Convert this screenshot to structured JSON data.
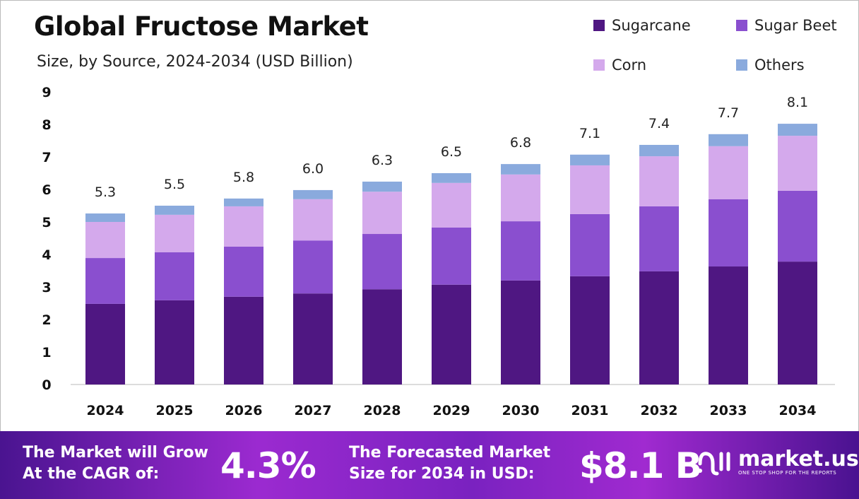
{
  "chart_data": {
    "type": "bar",
    "stacked": true,
    "title": "Global Fructose Market",
    "subtitle": "Size, by Source, 2024-2034 (USD Billion)",
    "categories": [
      "2024",
      "2025",
      "2026",
      "2027",
      "2028",
      "2029",
      "2030",
      "2031",
      "2032",
      "2033",
      "2034"
    ],
    "series": [
      {
        "name": "Sugarcane",
        "color": "#4f1782",
        "values": [
          2.48,
          2.59,
          2.7,
          2.8,
          2.93,
          3.07,
          3.2,
          3.33,
          3.48,
          3.63,
          3.78
        ]
      },
      {
        "name": "Sugar Beet",
        "color": "#8a4fcf",
        "values": [
          1.41,
          1.48,
          1.54,
          1.63,
          1.7,
          1.76,
          1.82,
          1.91,
          2.0,
          2.07,
          2.18
        ]
      },
      {
        "name": "Corn",
        "color": "#d4a9ec",
        "values": [
          1.11,
          1.15,
          1.24,
          1.27,
          1.3,
          1.37,
          1.44,
          1.5,
          1.54,
          1.63,
          1.69
        ]
      },
      {
        "name": "Others",
        "color": "#8aaadd",
        "values": [
          0.26,
          0.28,
          0.24,
          0.28,
          0.31,
          0.3,
          0.32,
          0.33,
          0.35,
          0.37,
          0.37
        ]
      }
    ],
    "totals": [
      "5.3",
      "5.5",
      "5.8",
      "6.0",
      "6.3",
      "6.5",
      "6.8",
      "7.1",
      "7.4",
      "7.7",
      "8.1"
    ],
    "yticks": [
      "0",
      "1",
      "2",
      "3",
      "4",
      "5",
      "6",
      "7",
      "8",
      "9"
    ],
    "ylim": [
      0,
      9
    ],
    "grid": false,
    "legend_position": "top-right"
  },
  "banner": {
    "cagr_label_line1": "The Market will Grow",
    "cagr_label_line2": "At the CAGR of:",
    "cagr_value": "4.3%",
    "forecast_label_line1": "The Forecasted Market",
    "forecast_label_line2": "Size for 2034 in USD:",
    "forecast_value": "$8.1 B",
    "logo_name": "market.us",
    "logo_tagline": "ONE STOP SHOP FOR THE REPORTS"
  }
}
